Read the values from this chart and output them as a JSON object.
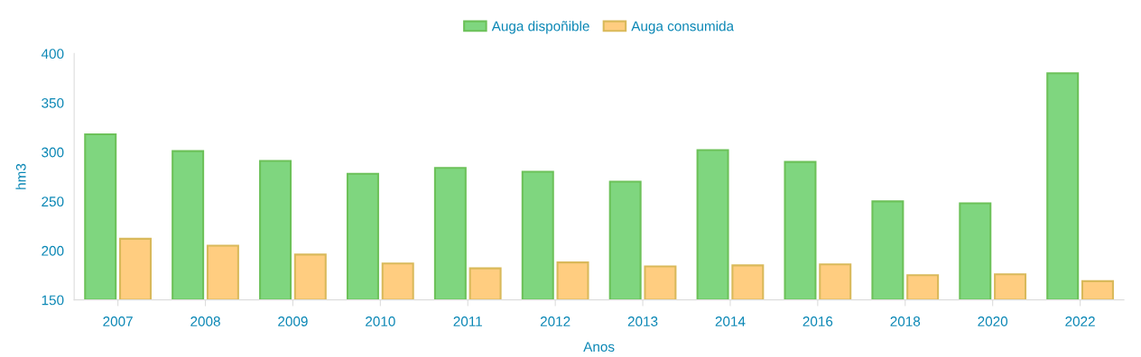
{
  "chart_data": {
    "type": "bar",
    "xlabel": "Anos",
    "ylabel": "hm3",
    "categories": [
      "2007",
      "2008",
      "2009",
      "2010",
      "2011",
      "2012",
      "2013",
      "2014",
      "2016",
      "2018",
      "2020",
      "2022"
    ],
    "series": [
      {
        "name": "Auga dispoñible",
        "color": "#7fd67f",
        "values": [
          318,
          301,
          291,
          278,
          284,
          280,
          270,
          302,
          290,
          250,
          248,
          380
        ]
      },
      {
        "name": "Auga consumida",
        "color": "#ffcd80",
        "values": [
          212,
          205,
          196,
          187,
          182,
          188,
          184,
          185,
          186,
          175,
          176,
          169
        ]
      }
    ],
    "ylim": [
      150,
      400
    ],
    "yticks": [
      150,
      200,
      250,
      300,
      350,
      400
    ],
    "grid": false,
    "legend": "top"
  }
}
